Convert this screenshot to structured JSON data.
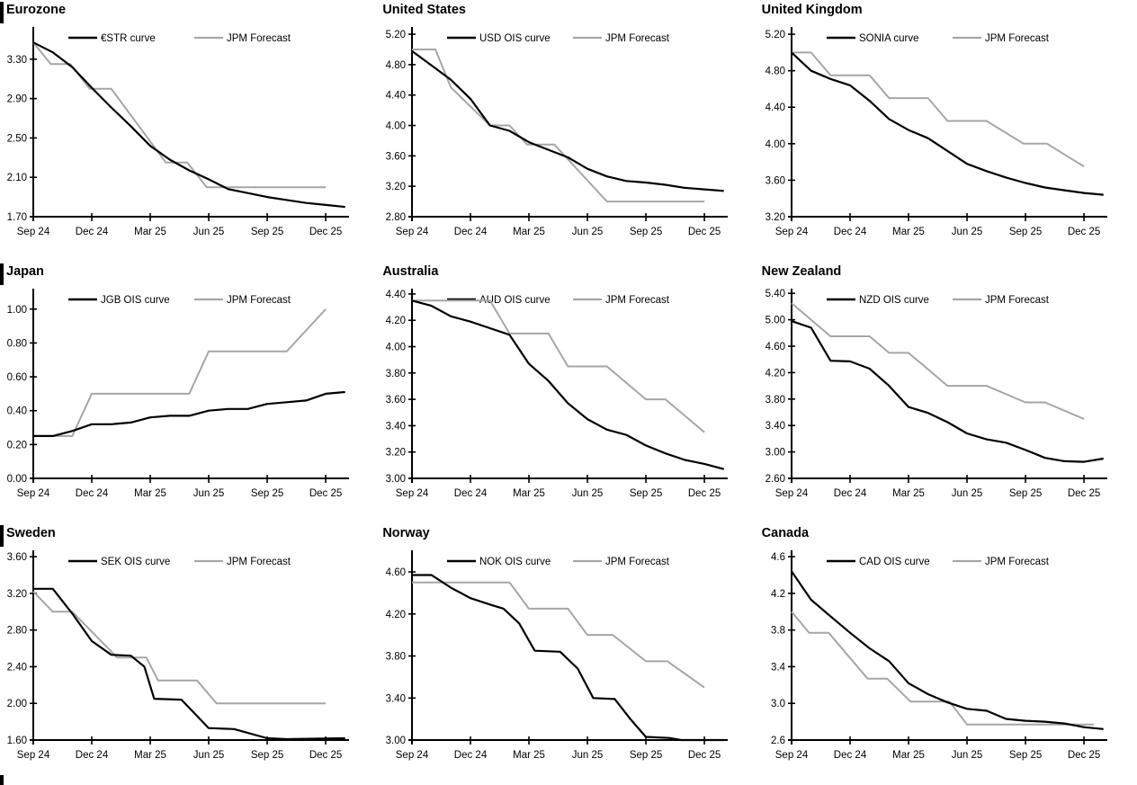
{
  "page": {
    "description": "3x3 grid of policy-rate curve charts vs JPM forecasts",
    "series_colors": {
      "market": "#000000",
      "forecast": "#a6a6a6"
    },
    "background": "#ffffff",
    "section_marker_bars_left_column": true,
    "bottom_left_cutoff_bar": true
  },
  "chart_data": [
    {
      "id": "eurozone",
      "title": "Eurozone",
      "type": "line",
      "section_bar": true,
      "x_axis": {
        "labels": [
          "Sep 24",
          "Dec 24",
          "Mar 25",
          "Jun 25",
          "Sep 25",
          "Dec 25"
        ],
        "tick_months": [
          0,
          3,
          6,
          9,
          12,
          15
        ]
      },
      "y_axis": {
        "tick_labels": [
          "1.70",
          "2.10",
          "2.50",
          "2.90",
          "3.30"
        ],
        "axis_min": 1.7,
        "axis_max": 3.6
      },
      "series": [
        {
          "name": "€STR curve",
          "role": "market",
          "color": "#000000",
          "x": [
            0,
            1,
            2,
            3,
            4,
            5,
            6,
            7,
            8,
            9,
            10,
            11,
            12,
            13,
            14,
            15,
            16
          ],
          "y": [
            3.47,
            3.37,
            3.22,
            3.01,
            2.81,
            2.62,
            2.42,
            2.28,
            2.17,
            2.08,
            1.98,
            1.94,
            1.9,
            1.87,
            1.84,
            1.82,
            1.8
          ]
        },
        {
          "name": "JPM Forecast",
          "role": "forecast",
          "color": "#a6a6a6",
          "x": [
            0,
            0.9,
            1.9,
            2.9,
            4,
            6.8,
            7.9,
            8.9,
            15
          ],
          "y": [
            3.47,
            3.25,
            3.25,
            3.0,
            3.0,
            2.25,
            2.25,
            2.0,
            2.0
          ]
        }
      ]
    },
    {
      "id": "united-states",
      "title": "United States",
      "type": "line",
      "section_bar": false,
      "x_axis": {
        "labels": [
          "Sep 24",
          "Dec 24",
          "Mar 25",
          "Jun 25",
          "Sep 25",
          "Dec 25"
        ],
        "tick_months": [
          0,
          3,
          6,
          9,
          12,
          15
        ]
      },
      "y_axis": {
        "tick_labels": [
          "2.80",
          "3.20",
          "3.60",
          "4.00",
          "4.40",
          "4.80",
          "5.20"
        ],
        "axis_min": 2.8,
        "axis_max": 5.26
      },
      "series": [
        {
          "name": "USD OIS curve",
          "role": "market",
          "color": "#000000",
          "x": [
            0,
            1,
            2,
            3,
            4,
            5,
            6,
            7,
            8,
            9,
            10,
            11,
            12,
            13,
            14,
            15,
            16
          ],
          "y": [
            4.98,
            4.79,
            4.6,
            4.35,
            4.0,
            3.93,
            3.78,
            3.68,
            3.58,
            3.43,
            3.33,
            3.27,
            3.25,
            3.22,
            3.18,
            3.16,
            3.14
          ]
        },
        {
          "name": "JPM Forecast",
          "role": "forecast",
          "color": "#a6a6a6",
          "x": [
            0,
            1.2,
            2,
            4,
            5,
            5.9,
            7.3,
            10,
            15
          ],
          "y": [
            5.0,
            5.0,
            4.5,
            4.0,
            4.0,
            3.75,
            3.75,
            3.0,
            3.0
          ]
        }
      ]
    },
    {
      "id": "united-kingdom",
      "title": "United Kingdom",
      "type": "line",
      "section_bar": false,
      "x_axis": {
        "labels": [
          "Sep 24",
          "Dec 24",
          "Mar 25",
          "Jun 25",
          "Sep 25",
          "Dec 25"
        ],
        "tick_months": [
          0,
          3,
          6,
          9,
          12,
          15
        ]
      },
      "y_axis": {
        "tick_labels": [
          "3.20",
          "3.60",
          "4.00",
          "4.40",
          "4.80",
          "5.20"
        ],
        "axis_min": 3.2,
        "axis_max": 5.25
      },
      "series": [
        {
          "name": "SONIA curve",
          "role": "market",
          "color": "#000000",
          "x": [
            0,
            1,
            2,
            3,
            4,
            5,
            6,
            7,
            8,
            9,
            10,
            11,
            12,
            13,
            14,
            15,
            16
          ],
          "y": [
            5.0,
            4.8,
            4.71,
            4.64,
            4.47,
            4.27,
            4.15,
            4.06,
            3.92,
            3.78,
            3.7,
            3.63,
            3.57,
            3.52,
            3.49,
            3.46,
            3.44
          ]
        },
        {
          "name": "JPM Forecast",
          "role": "forecast",
          "color": "#a6a6a6",
          "x": [
            0,
            1,
            2,
            4,
            5,
            7,
            8,
            10,
            11.9,
            13.1,
            15
          ],
          "y": [
            5.0,
            5.0,
            4.75,
            4.75,
            4.5,
            4.5,
            4.25,
            4.25,
            4.0,
            4.0,
            3.75
          ]
        }
      ]
    },
    {
      "id": "japan",
      "title": "Japan",
      "type": "line",
      "section_bar": true,
      "x_axis": {
        "labels": [
          "Sep 24",
          "Dec 24",
          "Mar 25",
          "Jun 25",
          "Sep 25",
          "Dec 25"
        ],
        "tick_months": [
          0,
          3,
          6,
          9,
          12,
          15
        ]
      },
      "y_axis": {
        "tick_labels": [
          "0.00",
          "0.20",
          "0.40",
          "0.60",
          "0.80",
          "1.00"
        ],
        "axis_min": 0.0,
        "axis_max": 1.105
      },
      "series": [
        {
          "name": "JGB OIS curve",
          "role": "market",
          "color": "#000000",
          "x": [
            0,
            1,
            2,
            3,
            4,
            5,
            6,
            7,
            8,
            9,
            10,
            11,
            12,
            13,
            14,
            15,
            16
          ],
          "y": [
            0.25,
            0.25,
            0.28,
            0.32,
            0.32,
            0.33,
            0.36,
            0.37,
            0.37,
            0.4,
            0.41,
            0.41,
            0.44,
            0.45,
            0.46,
            0.5,
            0.51
          ]
        },
        {
          "name": "JPM Forecast",
          "role": "forecast",
          "color": "#a6a6a6",
          "x": [
            0,
            2,
            3,
            8,
            9,
            13,
            15
          ],
          "y": [
            0.25,
            0.25,
            0.5,
            0.5,
            0.75,
            0.75,
            1.0
          ]
        }
      ]
    },
    {
      "id": "australia",
      "title": "Australia",
      "type": "line",
      "section_bar": false,
      "x_axis": {
        "labels": [
          "Sep 24",
          "Dec 24",
          "Mar 25",
          "Jun 25",
          "Sep 25",
          "Dec 25"
        ],
        "tick_months": [
          0,
          3,
          6,
          9,
          12,
          15
        ]
      },
      "y_axis": {
        "tick_labels": [
          "3.00",
          "3.20",
          "3.40",
          "3.60",
          "3.80",
          "4.00",
          "4.20",
          "4.40"
        ],
        "axis_min": 3.0,
        "axis_max": 4.42
      },
      "series": [
        {
          "name": "AUD OIS curve",
          "role": "market",
          "color": "#000000",
          "x": [
            0,
            1,
            2,
            3,
            4,
            5,
            6,
            7,
            8,
            9,
            10,
            11,
            12,
            13,
            14,
            15,
            16
          ],
          "y": [
            4.35,
            4.31,
            4.23,
            4.19,
            4.14,
            4.09,
            3.87,
            3.74,
            3.57,
            3.45,
            3.37,
            3.33,
            3.25,
            3.19,
            3.14,
            3.11,
            3.07
          ]
        },
        {
          "name": "JPM Forecast",
          "role": "forecast",
          "color": "#a6a6a6",
          "x": [
            0,
            4,
            5,
            7,
            8,
            10,
            12,
            13,
            15
          ],
          "y": [
            4.35,
            4.35,
            4.1,
            4.1,
            3.85,
            3.85,
            3.6,
            3.6,
            3.35
          ]
        }
      ]
    },
    {
      "id": "new-zealand",
      "title": "New Zealand",
      "type": "line",
      "section_bar": false,
      "x_axis": {
        "labels": [
          "Sep 24",
          "Dec 24",
          "Mar 25",
          "Jun 25",
          "Sep 25",
          "Dec 25"
        ],
        "tick_months": [
          0,
          3,
          6,
          9,
          12,
          15
        ]
      },
      "y_axis": {
        "tick_labels": [
          "2.60",
          "3.00",
          "3.40",
          "3.80",
          "4.20",
          "4.60",
          "5.00",
          "5.40"
        ],
        "axis_min": 2.6,
        "axis_max": 5.43
      },
      "series": [
        {
          "name": "NZD OIS curve",
          "role": "market",
          "color": "#000000",
          "x": [
            0,
            1,
            2,
            3,
            4,
            5,
            6,
            7,
            8,
            9,
            10,
            11,
            12,
            13,
            14,
            15,
            16
          ],
          "y": [
            4.98,
            4.88,
            4.38,
            4.37,
            4.26,
            4.0,
            3.68,
            3.59,
            3.45,
            3.28,
            3.19,
            3.14,
            3.03,
            2.91,
            2.86,
            2.85,
            2.9
          ]
        },
        {
          "name": "JPM Forecast",
          "role": "forecast",
          "color": "#a6a6a6",
          "x": [
            0,
            2,
            4,
            5,
            6,
            8,
            10,
            12,
            13,
            15
          ],
          "y": [
            5.25,
            4.75,
            4.75,
            4.5,
            4.5,
            4.0,
            4.0,
            3.75,
            3.75,
            3.5
          ]
        }
      ]
    },
    {
      "id": "sweden",
      "title": "Sweden",
      "type": "line",
      "section_bar": true,
      "x_axis": {
        "labels": [
          "Sep 24",
          "Dec 24",
          "Mar 25",
          "Jun 25",
          "Sep 25",
          "Dec 25"
        ],
        "tick_months": [
          0,
          3,
          6,
          9,
          12,
          15
        ]
      },
      "y_axis": {
        "tick_labels": [
          "1.60",
          "2.00",
          "2.40",
          "2.80",
          "3.20",
          "3.60"
        ],
        "axis_min": 1.6,
        "axis_max": 3.64
      },
      "series": [
        {
          "name": "SEK OIS curve",
          "role": "market",
          "color": "#000000",
          "x": [
            0,
            1,
            2,
            3,
            4,
            5,
            5.7,
            6.2,
            7.6,
            9,
            10.3,
            12,
            13,
            16
          ],
          "y": [
            3.25,
            3.25,
            2.98,
            2.68,
            2.53,
            2.52,
            2.4,
            2.05,
            2.04,
            1.73,
            1.72,
            1.62,
            1.61,
            1.62
          ]
        },
        {
          "name": "JPM Forecast",
          "role": "forecast",
          "color": "#a6a6a6",
          "x": [
            0,
            1,
            2,
            4.3,
            5.8,
            6.4,
            8.4,
            9.4,
            15
          ],
          "y": [
            3.22,
            3.0,
            3.0,
            2.5,
            2.5,
            2.25,
            2.25,
            2.0,
            2.0
          ]
        }
      ]
    },
    {
      "id": "norway",
      "title": "Norway",
      "type": "line",
      "section_bar": false,
      "x_axis": {
        "labels": [
          "Sep 24",
          "Dec 24",
          "Mar 25",
          "Jun 25",
          "Sep 25",
          "Dec 25"
        ],
        "tick_months": [
          0,
          3,
          6,
          9,
          12,
          15
        ]
      },
      "y_axis": {
        "tick_labels": [
          "3.00",
          "3.40",
          "3.80",
          "4.20",
          "4.60"
        ],
        "axis_min": 3.0,
        "axis_max": 4.78
      },
      "series": [
        {
          "name": "NOK OIS curve",
          "role": "market",
          "color": "#000000",
          "x": [
            0,
            1,
            2,
            3,
            4,
            4.7,
            5.5,
            6.3,
            7.6,
            8.5,
            9.3,
            10.4,
            11.2,
            12,
            13.2,
            13.8,
            16
          ],
          "y": [
            4.57,
            4.57,
            4.45,
            4.35,
            4.29,
            4.25,
            4.11,
            3.85,
            3.84,
            3.68,
            3.4,
            3.39,
            3.2,
            3.03,
            3.02,
            3.0,
            3.0
          ]
        },
        {
          "name": "JPM Forecast",
          "role": "forecast",
          "color": "#a6a6a6",
          "x": [
            0,
            5,
            6,
            8,
            9,
            10.3,
            12,
            13.1,
            15
          ],
          "y": [
            4.5,
            4.5,
            4.25,
            4.25,
            4.0,
            4.0,
            3.75,
            3.75,
            3.5
          ]
        }
      ]
    },
    {
      "id": "canada",
      "title": "Canada",
      "type": "line",
      "section_bar": false,
      "x_axis": {
        "labels": [
          "Sep 24",
          "Dec 24",
          "Mar 25",
          "Jun 25",
          "Sep 25",
          "Dec 25"
        ],
        "tick_months": [
          0,
          3,
          6,
          9,
          12,
          15
        ]
      },
      "y_axis": {
        "tick_labels": [
          "2.6",
          "3.0",
          "3.4",
          "3.8",
          "4.2",
          "4.6"
        ],
        "axis_min": 2.6,
        "axis_max": 4.64
      },
      "series": [
        {
          "name": "CAD OIS curve",
          "role": "market",
          "color": "#000000",
          "x": [
            0,
            1,
            2,
            3,
            4,
            5,
            6,
            7,
            8,
            9,
            10,
            11,
            12,
            13,
            14,
            15,
            16
          ],
          "y": [
            4.44,
            4.13,
            3.95,
            3.77,
            3.6,
            3.46,
            3.22,
            3.1,
            3.01,
            2.94,
            2.92,
            2.83,
            2.81,
            2.8,
            2.78,
            2.74,
            2.72
          ]
        },
        {
          "name": "JPM Forecast",
          "role": "forecast",
          "color": "#a6a6a6",
          "x": [
            0,
            0.9,
            1.9,
            3.9,
            4.9,
            6.1,
            8.1,
            9,
            15.5
          ],
          "y": [
            4.0,
            3.77,
            3.77,
            3.27,
            3.27,
            3.02,
            3.02,
            2.77,
            2.77
          ]
        }
      ]
    }
  ]
}
